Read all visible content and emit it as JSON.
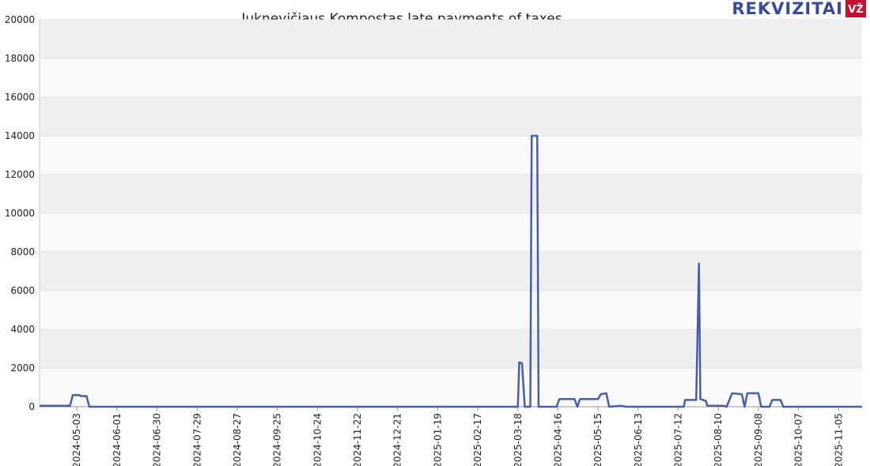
{
  "chart_data": {
    "type": "line",
    "title": "Juknevičiaus Kompostas late payments of taxes",
    "brand": "REKVIZITAI",
    "brand_badge": "VŽ",
    "x": [
      "2024-04-06",
      "2024-04-28",
      "2024-04-30",
      "2024-05-05",
      "2024-05-06",
      "2024-05-10",
      "2024-05-12",
      "2025-03-18",
      "2025-03-19",
      "2025-03-21",
      "2025-03-23",
      "2025-03-27",
      "2025-03-28",
      "2025-04-01",
      "2025-04-02",
      "2025-04-15",
      "2025-04-17",
      "2025-04-28",
      "2025-04-30",
      "2025-05-02",
      "2025-05-15",
      "2025-05-17",
      "2025-05-21",
      "2025-05-23",
      "2025-06-01",
      "2025-06-04",
      "2025-07-16",
      "2025-07-17",
      "2025-07-25",
      "2025-07-27",
      "2025-07-28",
      "2025-08-01",
      "2025-08-02",
      "2025-08-14",
      "2025-08-16",
      "2025-08-20",
      "2025-08-27",
      "2025-08-29",
      "2025-08-31",
      "2025-09-08",
      "2025-09-10",
      "2025-09-16",
      "2025-09-18",
      "2025-09-24",
      "2025-09-26",
      "2025-11-22"
    ],
    "series": [
      {
        "color": "#4a5ea8",
        "values": [
          50,
          50,
          600,
          600,
          550,
          550,
          0,
          0,
          2300,
          2250,
          0,
          0,
          14000,
          14000,
          0,
          0,
          400,
          400,
          0,
          400,
          400,
          650,
          700,
          0,
          50,
          0,
          0,
          350,
          350,
          7400,
          400,
          300,
          50,
          50,
          0,
          700,
          650,
          0,
          700,
          700,
          0,
          0,
          350,
          350,
          0,
          0
        ]
      }
    ],
    "xlim": [
      "2024-04-06",
      "2025-11-22"
    ],
    "xticks": [
      "2024-05-03",
      "2024-06-01",
      "2024-06-30",
      "2024-07-29",
      "2024-08-27",
      "2024-09-25",
      "2024-10-24",
      "2024-11-22",
      "2024-12-21",
      "2025-01-19",
      "2025-02-17",
      "2025-03-18",
      "2025-04-16",
      "2025-05-15",
      "2025-06-13",
      "2025-07-12",
      "2025-08-10",
      "2025-09-08",
      "2025-10-07",
      "2025-11-05"
    ],
    "ylim": [
      0,
      20000
    ],
    "yticks": [
      0,
      2000,
      4000,
      6000,
      8000,
      10000,
      12000,
      14000,
      16000,
      18000,
      20000
    ],
    "grid": true
  }
}
